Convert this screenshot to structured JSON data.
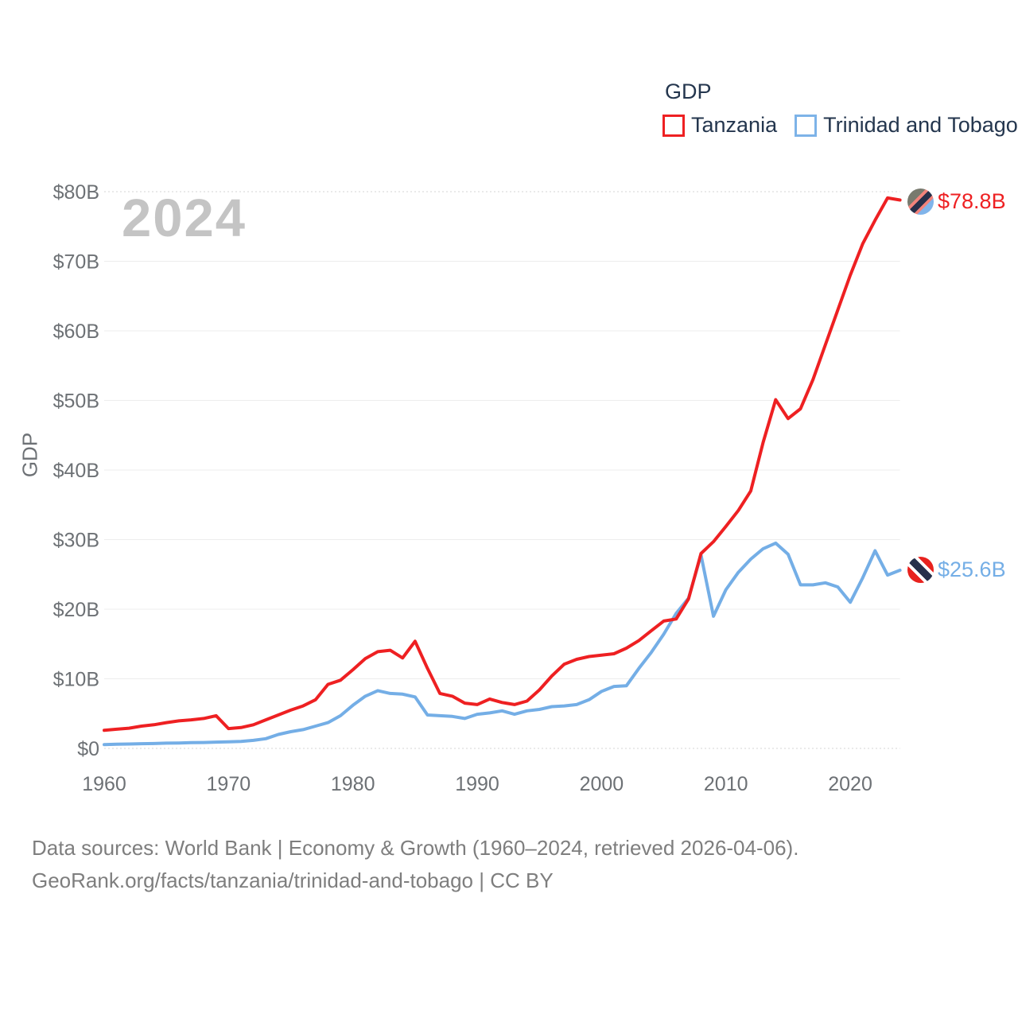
{
  "legend": {
    "title": "GDP",
    "items": [
      {
        "label": "Tanzania",
        "color": "#ee2022"
      },
      {
        "label": "Trinidad and Tobago",
        "color": "#74aee6"
      }
    ]
  },
  "watermark": "2024",
  "y_axis_title": "GDP",
  "end_labels": {
    "tanzania": "$78.8B",
    "trinidad_and_tobago": "$25.6B"
  },
  "footer": {
    "line1": "Data sources: World Bank | Economy & Growth (1960–2024, retrieved 2026-04-06).",
    "line2": "GeoRank.org/facts/tanzania/trinidad-and-tobago | CC BY"
  },
  "colors": {
    "tanzania_line": "#ee2022",
    "trinidad_line": "#74aee6",
    "tick_text": "#6d7175",
    "legend_text": "#24364e",
    "watermark": "#c4c4c4",
    "footer_text": "#7e7e7e"
  },
  "chart_data": {
    "type": "line",
    "title": "GDP",
    "ylabel": "GDP",
    "xlabel": "",
    "ylim": [
      0,
      80
    ],
    "x_range": [
      1960,
      2024
    ],
    "grid": true,
    "legend_position": "top-right",
    "y_ticks": [
      {
        "v": 0,
        "label": "$0"
      },
      {
        "v": 10,
        "label": "$10B"
      },
      {
        "v": 20,
        "label": "$20B"
      },
      {
        "v": 30,
        "label": "$30B"
      },
      {
        "v": 40,
        "label": "$40B"
      },
      {
        "v": 50,
        "label": "$50B"
      },
      {
        "v": 60,
        "label": "$60B"
      },
      {
        "v": 70,
        "label": "$70B"
      },
      {
        "v": 80,
        "label": "$80B"
      }
    ],
    "x_ticks": [
      {
        "v": 1960,
        "label": "1960"
      },
      {
        "v": 1970,
        "label": "1970"
      },
      {
        "v": 1980,
        "label": "1980"
      },
      {
        "v": 1990,
        "label": "1990"
      },
      {
        "v": 2000,
        "label": "2000"
      },
      {
        "v": 2010,
        "label": "2010"
      },
      {
        "v": 2020,
        "label": "2020"
      }
    ],
    "years": [
      1960,
      1961,
      1962,
      1963,
      1964,
      1965,
      1966,
      1967,
      1968,
      1969,
      1970,
      1971,
      1972,
      1973,
      1974,
      1975,
      1976,
      1977,
      1978,
      1979,
      1980,
      1981,
      1982,
      1983,
      1984,
      1985,
      1986,
      1987,
      1988,
      1989,
      1990,
      1991,
      1992,
      1993,
      1994,
      1995,
      1996,
      1997,
      1998,
      1999,
      2000,
      2001,
      2002,
      2003,
      2004,
      2005,
      2006,
      2007,
      2008,
      2009,
      2010,
      2011,
      2012,
      2013,
      2014,
      2015,
      2016,
      2017,
      2018,
      2019,
      2020,
      2021,
      2022,
      2023,
      2024
    ],
    "unit": "billion USD",
    "series": [
      {
        "name": "Tanzania",
        "color": "#ee2022",
        "end_value_label": "$78.8B",
        "values": [
          2.6,
          2.75,
          2.9,
          3.2,
          3.4,
          3.7,
          3.95,
          4.1,
          4.3,
          4.7,
          2.85,
          3.0,
          3.4,
          4.1,
          4.8,
          5.5,
          6.1,
          7.0,
          9.2,
          9.8,
          11.3,
          12.9,
          13.9,
          14.1,
          13.0,
          15.4,
          11.5,
          7.9,
          7.5,
          6.5,
          6.3,
          7.1,
          6.6,
          6.3,
          6.8,
          8.4,
          10.4,
          12.1,
          12.8,
          13.2,
          13.4,
          13.6,
          14.4,
          15.5,
          16.9,
          18.3,
          18.6,
          21.5,
          28.0,
          29.7,
          31.9,
          34.2,
          37.0,
          44.0,
          50.1,
          47.4,
          48.8,
          53.0,
          58.0,
          63.0,
          68.0,
          72.5,
          75.9,
          79.1,
          78.8
        ]
      },
      {
        "name": "Trinidad and Tobago",
        "color": "#74aee6",
        "end_value_label": "$25.6B",
        "values": [
          0.55,
          0.6,
          0.63,
          0.67,
          0.7,
          0.75,
          0.78,
          0.82,
          0.85,
          0.9,
          0.95,
          1.0,
          1.15,
          1.4,
          2.0,
          2.4,
          2.7,
          3.2,
          3.7,
          4.7,
          6.2,
          7.5,
          8.3,
          7.9,
          7.8,
          7.4,
          4.8,
          4.7,
          4.6,
          4.3,
          4.9,
          5.1,
          5.4,
          4.9,
          5.4,
          5.6,
          6.0,
          6.1,
          6.3,
          7.0,
          8.2,
          8.9,
          9.0,
          11.5,
          13.8,
          16.4,
          19.4,
          21.6,
          27.8,
          19.0,
          22.8,
          25.3,
          27.2,
          28.7,
          29.5,
          27.9,
          23.5,
          23.5,
          23.8,
          23.2,
          21.0,
          24.5,
          28.4,
          24.9,
          25.6
        ]
      }
    ]
  }
}
